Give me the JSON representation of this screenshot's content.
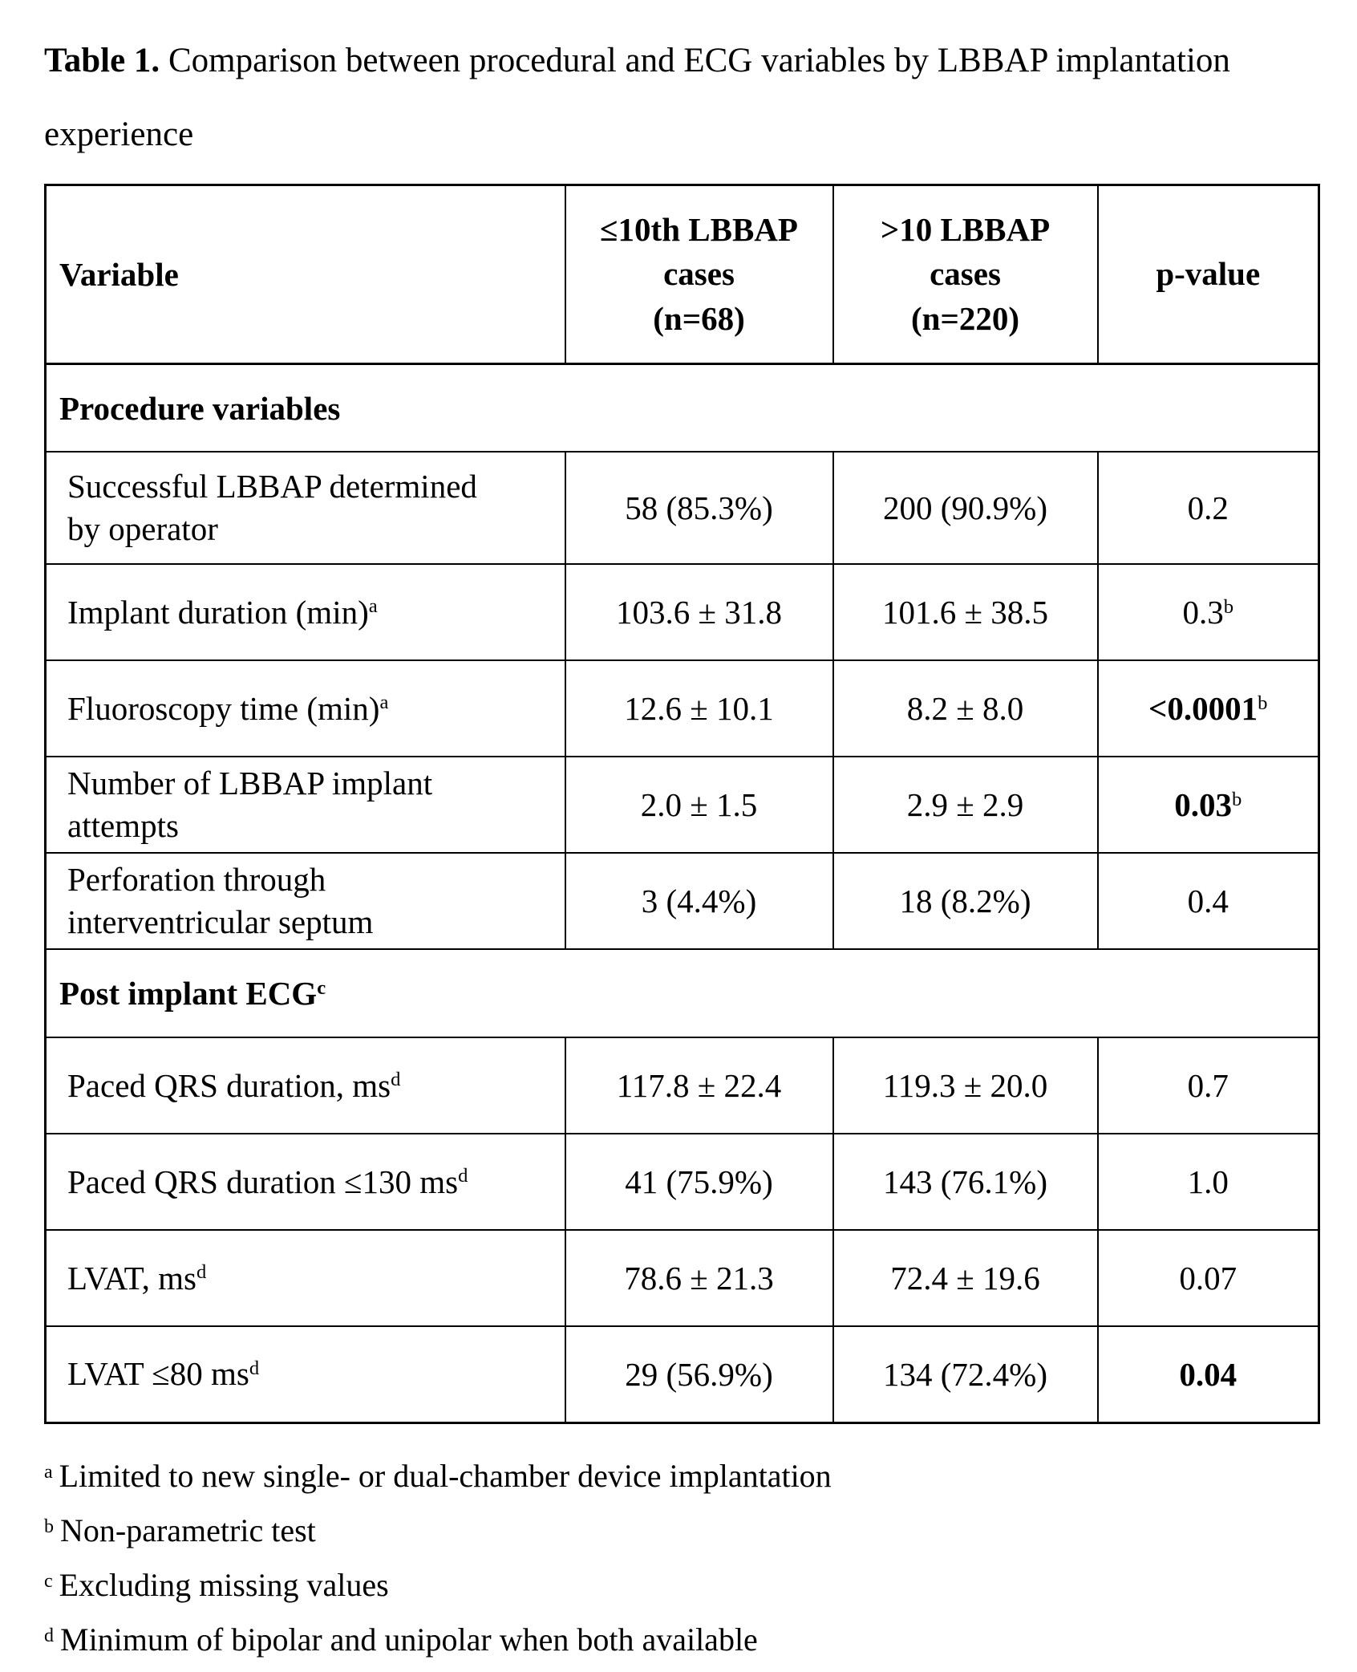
{
  "title": {
    "label": "Table 1.",
    "text": "Comparison between procedural and ECG variables by LBBAP implantation experience"
  },
  "table": {
    "header": [
      "Variable",
      "≤10th LBBAP\ncases\n(n=68)",
      ">10 LBBAP\ncases\n(n=220)",
      "p-value"
    ],
    "rows": [
      {
        "type": "section",
        "label": "Procedure variables",
        "sup": ""
      },
      {
        "type": "data",
        "variable": {
          "text": "Successful LBBAP determined\nby operator",
          "sup": ""
        },
        "col1": {
          "text": "58 (85.3%)"
        },
        "col2": {
          "text": "200 (90.9%)"
        },
        "p": {
          "text": "0.2",
          "sup": "",
          "bold": false
        }
      },
      {
        "type": "data",
        "variable": {
          "text": "Implant duration (min)",
          "sup": "a"
        },
        "col1": {
          "text": "103.6 ± 31.8"
        },
        "col2": {
          "text": "101.6 ± 38.5"
        },
        "p": {
          "text": "0.3",
          "sup": "b",
          "bold": false
        }
      },
      {
        "type": "data",
        "variable": {
          "text": "Fluoroscopy time (min)",
          "sup": "a"
        },
        "col1": {
          "text": "12.6 ± 10.1"
        },
        "col2": {
          "text": "8.2 ± 8.0"
        },
        "p": {
          "text": "<0.0001",
          "sup": "b",
          "bold": true
        }
      },
      {
        "type": "data",
        "variable": {
          "text": "Number of LBBAP implant\nattempts",
          "sup": ""
        },
        "col1": {
          "text": "2.0 ± 1.5"
        },
        "col2": {
          "text": "2.9 ± 2.9"
        },
        "p": {
          "text": "0.03",
          "sup": "b",
          "bold": true
        }
      },
      {
        "type": "data",
        "variable": {
          "text": "Perforation through\ninterventricular septum",
          "sup": ""
        },
        "col1": {
          "text": "3 (4.4%)"
        },
        "col2": {
          "text": "18 (8.2%)"
        },
        "p": {
          "text": "0.4",
          "sup": "",
          "bold": false
        }
      },
      {
        "type": "section",
        "label": "Post implant ECG",
        "sup": "c"
      },
      {
        "type": "data",
        "variable": {
          "text": "Paced QRS duration, ms",
          "sup": "d"
        },
        "col1": {
          "text": "117.8 ± 22.4"
        },
        "col2": {
          "text": "119.3 ± 20.0"
        },
        "p": {
          "text": "0.7",
          "sup": "",
          "bold": false
        }
      },
      {
        "type": "data",
        "variable": {
          "text": "Paced QRS duration ≤130 ms",
          "sup": "d"
        },
        "col1": {
          "text": "41 (75.9%)"
        },
        "col2": {
          "text": "143 (76.1%)"
        },
        "p": {
          "text": "1.0",
          "sup": "",
          "bold": false
        }
      },
      {
        "type": "data",
        "variable": {
          "text": "LVAT, ms",
          "sup": "d"
        },
        "col1": {
          "text": "78.6 ± 21.3"
        },
        "col2": {
          "text": "72.4 ± 19.6"
        },
        "p": {
          "text": "0.07",
          "sup": "",
          "bold": false
        }
      },
      {
        "type": "data",
        "variable": {
          "text": "LVAT ≤80 ms",
          "sup": "d"
        },
        "col1": {
          "text": "29 (56.9%)"
        },
        "col2": {
          "text": "134 (72.4%)"
        },
        "p": {
          "text": "0.04",
          "sup": "",
          "bold": true
        }
      }
    ]
  },
  "footnotes": [
    {
      "sup": "a",
      "text": "Limited to new single- or dual-chamber device implantation"
    },
    {
      "sup": "b",
      "text": "Non-parametric test"
    },
    {
      "sup": "c",
      "text": "Excluding missing values"
    },
    {
      "sup": "d",
      "text": "Minimum of bipolar and unipolar when both available"
    }
  ]
}
